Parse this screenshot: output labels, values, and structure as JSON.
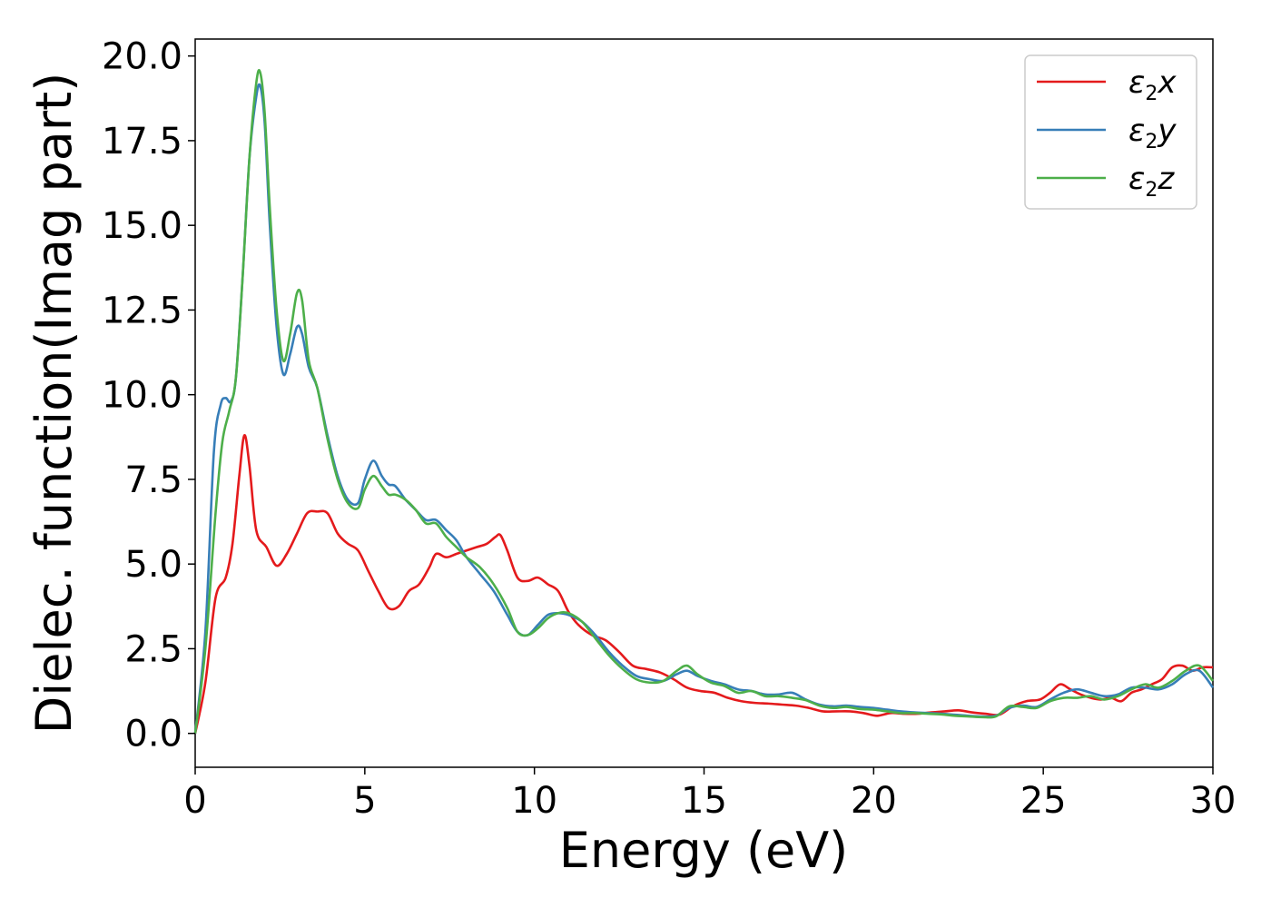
{
  "chart_data": {
    "type": "line",
    "title": "",
    "xlabel": "Energy (eV)",
    "ylabel": "Dielec. function(Imag part)",
    "xlim": [
      0,
      30
    ],
    "ylim": [
      -1.0,
      20.5
    ],
    "xticks": [
      "0",
      "5",
      "10",
      "15",
      "20",
      "25",
      "30"
    ],
    "yticks": [
      "0.0",
      "2.5",
      "5.0",
      "7.5",
      "10.0",
      "12.5",
      "15.0",
      "17.5",
      "20.0"
    ],
    "grid": false,
    "legend_position": "top-right",
    "series": [
      {
        "name": "ε2x",
        "symbol": "ε",
        "sub": "2",
        "axis": "x",
        "color": "#e41a1c",
        "x": [
          0,
          0.3,
          0.6,
          0.9,
          1.1,
          1.3,
          1.45,
          1.6,
          1.8,
          2.1,
          2.4,
          2.7,
          3.0,
          3.3,
          3.6,
          3.9,
          4.2,
          4.5,
          4.8,
          5.1,
          5.4,
          5.7,
          6.0,
          6.3,
          6.6,
          6.9,
          7.1,
          7.4,
          7.7,
          8.0,
          8.3,
          8.6,
          8.85,
          9.0,
          9.2,
          9.5,
          9.8,
          10.1,
          10.4,
          10.7,
          11.0,
          11.3,
          11.7,
          12.1,
          12.5,
          12.9,
          13.3,
          13.7,
          14.1,
          14.5,
          14.9,
          15.3,
          15.7,
          16.1,
          16.5,
          16.9,
          17.3,
          17.7,
          18.1,
          18.5,
          18.9,
          19.3,
          19.7,
          20.1,
          20.5,
          20.9,
          21.3,
          21.7,
          22.1,
          22.5,
          22.9,
          23.3,
          23.7,
          24.1,
          24.5,
          24.9,
          25.2,
          25.5,
          25.8,
          26.1,
          26.4,
          26.7,
          27.0,
          27.3,
          27.6,
          27.9,
          28.2,
          28.5,
          28.8,
          29.1,
          29.4,
          29.7,
          30
        ],
        "y": [
          0.0,
          1.5,
          4.0,
          4.6,
          5.6,
          7.6,
          8.8,
          7.9,
          6.0,
          5.5,
          4.95,
          5.3,
          5.9,
          6.5,
          6.55,
          6.5,
          5.9,
          5.6,
          5.4,
          4.8,
          4.2,
          3.7,
          3.75,
          4.2,
          4.4,
          4.9,
          5.3,
          5.2,
          5.3,
          5.4,
          5.5,
          5.6,
          5.8,
          5.85,
          5.4,
          4.6,
          4.5,
          4.6,
          4.4,
          4.2,
          3.6,
          3.2,
          2.9,
          2.75,
          2.4,
          2.0,
          1.9,
          1.8,
          1.6,
          1.35,
          1.25,
          1.2,
          1.05,
          0.95,
          0.9,
          0.88,
          0.85,
          0.82,
          0.75,
          0.65,
          0.65,
          0.65,
          0.6,
          0.52,
          0.6,
          0.58,
          0.58,
          0.62,
          0.65,
          0.68,
          0.62,
          0.58,
          0.55,
          0.8,
          0.95,
          1.0,
          1.2,
          1.45,
          1.3,
          1.15,
          1.05,
          1.0,
          1.05,
          0.95,
          1.2,
          1.3,
          1.45,
          1.6,
          1.95,
          2.0,
          1.85,
          1.95,
          1.95
        ]
      },
      {
        "name": "ε2y",
        "symbol": "ε",
        "sub": "2",
        "axis": "y",
        "color": "#377eb8",
        "x": [
          0,
          0.3,
          0.55,
          0.75,
          0.9,
          1.05,
          1.2,
          1.4,
          1.6,
          1.8,
          1.92,
          2.05,
          2.2,
          2.4,
          2.6,
          2.8,
          3.0,
          3.15,
          3.35,
          3.6,
          3.9,
          4.2,
          4.5,
          4.8,
          5.0,
          5.25,
          5.5,
          5.7,
          5.9,
          6.2,
          6.5,
          6.8,
          7.1,
          7.4,
          7.7,
          8.0,
          8.4,
          8.8,
          9.2,
          9.5,
          9.8,
          10.1,
          10.4,
          10.7,
          11.0,
          11.4,
          11.8,
          12.2,
          12.6,
          13.0,
          13.4,
          13.8,
          14.2,
          14.5,
          14.8,
          15.2,
          15.6,
          16.0,
          16.4,
          16.8,
          17.2,
          17.6,
          18.0,
          18.4,
          18.8,
          19.2,
          19.6,
          20.0,
          20.4,
          20.8,
          21.2,
          21.6,
          22.0,
          22.4,
          22.8,
          23.2,
          23.6,
          24.0,
          24.4,
          24.8,
          25.2,
          25.6,
          26.0,
          26.4,
          26.8,
          27.2,
          27.6,
          28.0,
          28.4,
          28.8,
          29.2,
          29.6,
          30
        ],
        "y": [
          0.0,
          3.0,
          8.3,
          9.7,
          9.9,
          9.8,
          10.5,
          13.5,
          17.0,
          18.8,
          19.1,
          18.0,
          15.0,
          12.0,
          10.6,
          11.2,
          12.0,
          11.8,
          10.8,
          10.2,
          8.8,
          7.6,
          6.9,
          6.8,
          7.5,
          8.05,
          7.6,
          7.35,
          7.3,
          6.9,
          6.6,
          6.3,
          6.3,
          6.0,
          5.7,
          5.2,
          4.7,
          4.2,
          3.5,
          3.0,
          2.9,
          3.2,
          3.5,
          3.55,
          3.5,
          3.3,
          2.9,
          2.4,
          2.0,
          1.7,
          1.6,
          1.55,
          1.75,
          1.85,
          1.7,
          1.55,
          1.45,
          1.3,
          1.25,
          1.15,
          1.15,
          1.2,
          1.0,
          0.85,
          0.8,
          0.82,
          0.78,
          0.75,
          0.7,
          0.65,
          0.62,
          0.6,
          0.58,
          0.55,
          0.52,
          0.5,
          0.52,
          0.75,
          0.82,
          0.78,
          1.0,
          1.2,
          1.3,
          1.2,
          1.1,
          1.15,
          1.35,
          1.35,
          1.3,
          1.45,
          1.75,
          1.85,
          1.35
        ]
      },
      {
        "name": "ε2z",
        "symbol": "ε",
        "sub": "2",
        "axis": "z",
        "color": "#4daf4a",
        "x": [
          0,
          0.3,
          0.6,
          0.8,
          1.0,
          1.2,
          1.4,
          1.6,
          1.8,
          1.92,
          2.05,
          2.2,
          2.4,
          2.6,
          2.8,
          3.0,
          3.15,
          3.35,
          3.6,
          3.9,
          4.2,
          4.5,
          4.8,
          5.0,
          5.25,
          5.5,
          5.7,
          5.9,
          6.2,
          6.5,
          6.8,
          7.1,
          7.4,
          7.7,
          8.0,
          8.4,
          8.8,
          9.2,
          9.5,
          9.8,
          10.1,
          10.4,
          10.7,
          11.0,
          11.4,
          11.8,
          12.2,
          12.6,
          13.0,
          13.4,
          13.8,
          14.2,
          14.5,
          14.8,
          15.2,
          15.6,
          16.0,
          16.4,
          16.8,
          17.2,
          17.6,
          18.0,
          18.4,
          18.8,
          19.2,
          19.6,
          20.0,
          20.4,
          20.8,
          21.2,
          21.6,
          22.0,
          22.4,
          22.8,
          23.2,
          23.6,
          24.0,
          24.4,
          24.8,
          25.2,
          25.6,
          26.0,
          26.4,
          26.8,
          27.2,
          27.6,
          28.0,
          28.4,
          28.8,
          29.2,
          29.6,
          30
        ],
        "y": [
          0.0,
          2.5,
          6.5,
          8.6,
          9.5,
          10.5,
          13.5,
          17.0,
          19.2,
          19.5,
          18.3,
          15.5,
          12.5,
          11.0,
          11.8,
          13.0,
          12.8,
          11.0,
          10.2,
          8.7,
          7.5,
          6.8,
          6.65,
          7.2,
          7.6,
          7.3,
          7.05,
          7.05,
          6.9,
          6.6,
          6.2,
          6.2,
          5.8,
          5.5,
          5.2,
          4.9,
          4.4,
          3.7,
          3.0,
          2.9,
          3.1,
          3.4,
          3.55,
          3.55,
          3.3,
          2.8,
          2.3,
          1.9,
          1.6,
          1.5,
          1.55,
          1.85,
          2.0,
          1.75,
          1.5,
          1.4,
          1.2,
          1.25,
          1.1,
          1.1,
          1.05,
          0.98,
          0.82,
          0.75,
          0.78,
          0.72,
          0.7,
          0.65,
          0.6,
          0.6,
          0.58,
          0.56,
          0.52,
          0.5,
          0.48,
          0.5,
          0.8,
          0.78,
          0.75,
          0.95,
          1.05,
          1.05,
          1.1,
          1.0,
          1.1,
          1.3,
          1.45,
          1.35,
          1.55,
          1.85,
          2.0,
          1.55
        ]
      }
    ]
  }
}
